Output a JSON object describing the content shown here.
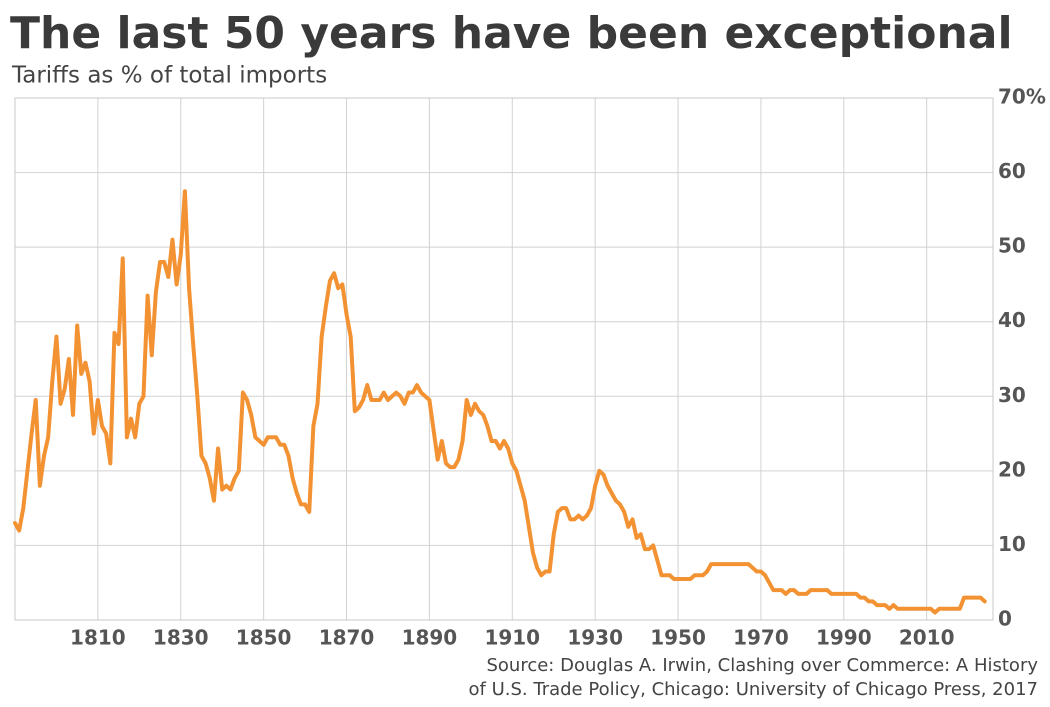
{
  "chart_data": {
    "type": "line",
    "title": "The last 50 years have been exceptional",
    "subtitle": "Tariffs as % of total imports",
    "source": [
      "Source: Douglas A. Irwin, Clashing over Commerce: A History",
      "of U.S. Trade Policy, Chicago: University of Chicago Press, 2017"
    ],
    "color": "#f39232",
    "grid": true,
    "xlim": [
      1790,
      2026
    ],
    "ylim": [
      0,
      70
    ],
    "xticks": [
      1810,
      1830,
      1850,
      1870,
      1890,
      1910,
      1930,
      1950,
      1970,
      1990,
      2010
    ],
    "yticks": [
      0,
      10,
      20,
      30,
      40,
      50,
      60,
      {
        "value": 70,
        "label": "70%"
      }
    ],
    "x": [
      1790,
      1791,
      1792,
      1793,
      1794,
      1795,
      1796,
      1797,
      1798,
      1799,
      1800,
      1801,
      1802,
      1803,
      1804,
      1805,
      1806,
      1807,
      1808,
      1809,
      1810,
      1811,
      1812,
      1813,
      1814,
      1815,
      1816,
      1817,
      1818,
      1819,
      1820,
      1821,
      1822,
      1823,
      1824,
      1825,
      1826,
      1827,
      1828,
      1829,
      1830,
      1831,
      1832,
      1833,
      1834,
      1835,
      1836,
      1837,
      1838,
      1839,
      1840,
      1841,
      1842,
      1843,
      1844,
      1845,
      1846,
      1847,
      1848,
      1849,
      1850,
      1851,
      1852,
      1853,
      1854,
      1855,
      1856,
      1857,
      1858,
      1859,
      1860,
      1861,
      1862,
      1863,
      1864,
      1865,
      1866,
      1867,
      1868,
      1869,
      1870,
      1871,
      1872,
      1873,
      1874,
      1875,
      1876,
      1877,
      1878,
      1879,
      1880,
      1881,
      1882,
      1883,
      1884,
      1885,
      1886,
      1887,
      1888,
      1889,
      1890,
      1891,
      1892,
      1893,
      1894,
      1895,
      1896,
      1897,
      1898,
      1899,
      1900,
      1901,
      1902,
      1903,
      1904,
      1905,
      1906,
      1907,
      1908,
      1909,
      1910,
      1911,
      1912,
      1913,
      1914,
      1915,
      1916,
      1917,
      1918,
      1919,
      1920,
      1921,
      1922,
      1923,
      1924,
      1925,
      1926,
      1927,
      1928,
      1929,
      1930,
      1931,
      1932,
      1933,
      1934,
      1935,
      1936,
      1937,
      1938,
      1939,
      1940,
      1941,
      1942,
      1943,
      1944,
      1945,
      1946,
      1947,
      1948,
      1949,
      1950,
      1951,
      1952,
      1953,
      1954,
      1955,
      1956,
      1957,
      1958,
      1959,
      1960,
      1961,
      1962,
      1963,
      1964,
      1965,
      1966,
      1967,
      1968,
      1969,
      1970,
      1971,
      1972,
      1973,
      1974,
      1975,
      1976,
      1977,
      1978,
      1979,
      1980,
      1981,
      1982,
      1983,
      1984,
      1985,
      1986,
      1987,
      1988,
      1989,
      1990,
      1991,
      1992,
      1993,
      1994,
      1995,
      1996,
      1997,
      1998,
      1999,
      2000,
      2001,
      2002,
      2003,
      2004,
      2005,
      2006,
      2007,
      2008,
      2009,
      2010,
      2011,
      2012,
      2013,
      2014,
      2015,
      2016,
      2017,
      2018,
      2019,
      2020,
      2021,
      2022,
      2023,
      2024
    ],
    "values": [
      13,
      12,
      15,
      20,
      25,
      29.5,
      18,
      22,
      24.5,
      32,
      38,
      29,
      31,
      35,
      27.5,
      39.5,
      33,
      34.5,
      32,
      25,
      29.5,
      26,
      25,
      21,
      38.5,
      37,
      48.5,
      24.5,
      27,
      24.5,
      29,
      30,
      43.5,
      35.5,
      44,
      48,
      48,
      46,
      51,
      45,
      49,
      57.5,
      44.5,
      37,
      30,
      22,
      21,
      19,
      16,
      23,
      17.5,
      18,
      17.5,
      19,
      20,
      30.5,
      29.5,
      27.5,
      24.5,
      24,
      23.5,
      24.5,
      24.5,
      24.5,
      23.5,
      23.5,
      22,
      19,
      17,
      15.5,
      15.5,
      14.5,
      26,
      29,
      38,
      42,
      45.5,
      46.5,
      44.5,
      45,
      41,
      38,
      28,
      28.5,
      29.5,
      31.5,
      29.5,
      29.5,
      29.5,
      30.5,
      29.5,
      30,
      30.5,
      30,
      29,
      30.5,
      30.5,
      31.5,
      30.5,
      30,
      29.5,
      25.5,
      21.5,
      24,
      21,
      20.5,
      20.5,
      21.5,
      24,
      29.5,
      27.5,
      29,
      28,
      27.5,
      26,
      24,
      24,
      23,
      24,
      23,
      21,
      20,
      18,
      16,
      12.5,
      9,
      7,
      6,
      6.5,
      6.5,
      11.5,
      14.5,
      15,
      15,
      13.5,
      13.5,
      14,
      13.5,
      14,
      15,
      18,
      20,
      19.5,
      18,
      17,
      16,
      15.5,
      14.5,
      12.5,
      13.5,
      11,
      11.5,
      9.5,
      9.5,
      10,
      8,
      6,
      6,
      6,
      5.5,
      5.5,
      5.5,
      5.5,
      5.5,
      6,
      6,
      6,
      6.5,
      7.5,
      7.5,
      7.5,
      7.5,
      7.5,
      7.5,
      7.5,
      7.5,
      7.5,
      7.5,
      7,
      6.5,
      6.5,
      6,
      5,
      4,
      4,
      4,
      3.5,
      4,
      4,
      3.5,
      3.5,
      3.5,
      4,
      4,
      4,
      4,
      4,
      3.5,
      3.5,
      3.5,
      3.5,
      3.5,
      3.5,
      3.5,
      3,
      3,
      2.5,
      2.5,
      2,
      2,
      2,
      1.5,
      2,
      1.5,
      1.5,
      1.5,
      1.5,
      1.5,
      1.5,
      1.5,
      1.5,
      1.5,
      1,
      1.5,
      1.5,
      1.5,
      1.5,
      1.5,
      1.5,
      3,
      3,
      3,
      3,
      3,
      2.5
    ]
  }
}
